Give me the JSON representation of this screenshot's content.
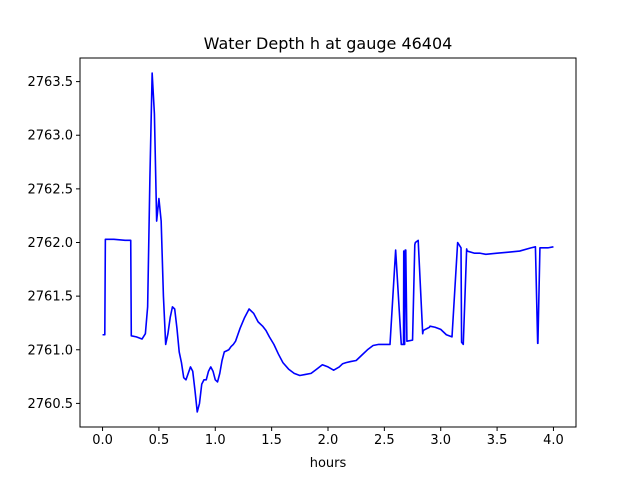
{
  "chart_data": {
    "type": "line",
    "title": "Water Depth h at gauge 46404",
    "xlabel": "hours",
    "ylabel": "",
    "xlim": [
      -0.2,
      4.2
    ],
    "ylim": [
      2760.28,
      2763.72
    ],
    "xticks": [
      0.0,
      0.5,
      1.0,
      1.5,
      2.0,
      2.5,
      3.0,
      3.5,
      4.0
    ],
    "xtick_labels": [
      "0.0",
      "0.5",
      "1.0",
      "1.5",
      "2.0",
      "2.5",
      "3.0",
      "3.5",
      "4.0"
    ],
    "yticks": [
      2760.5,
      2761.0,
      2761.5,
      2762.0,
      2762.5,
      2763.0,
      2763.5
    ],
    "ytick_labels": [
      "2760.5",
      "2761.0",
      "2761.5",
      "2762.0",
      "2762.5",
      "2763.0",
      "2763.5"
    ],
    "grid": false,
    "series": [
      {
        "color": "#0000ff",
        "x": [
          0.0,
          0.02,
          0.025,
          0.1,
          0.2,
          0.25,
          0.255,
          0.3,
          0.35,
          0.38,
          0.4,
          0.42,
          0.44,
          0.46,
          0.48,
          0.5,
          0.52,
          0.54,
          0.56,
          0.58,
          0.6,
          0.62,
          0.64,
          0.66,
          0.68,
          0.7,
          0.72,
          0.74,
          0.76,
          0.78,
          0.8,
          0.82,
          0.84,
          0.86,
          0.88,
          0.9,
          0.92,
          0.94,
          0.96,
          0.98,
          1.0,
          1.02,
          1.04,
          1.06,
          1.08,
          1.1,
          1.12,
          1.14,
          1.16,
          1.18,
          1.2,
          1.22,
          1.26,
          1.3,
          1.34,
          1.38,
          1.42,
          1.45,
          1.48,
          1.52,
          1.56,
          1.6,
          1.65,
          1.7,
          1.75,
          1.8,
          1.85,
          1.9,
          1.95,
          2.0,
          2.05,
          2.1,
          2.13,
          2.16,
          2.2,
          2.25,
          2.3,
          2.35,
          2.4,
          2.45,
          2.5,
          2.55,
          2.6,
          2.65,
          2.67,
          2.672,
          2.675,
          2.68,
          2.685,
          2.69,
          2.7,
          2.75,
          2.77,
          2.775,
          2.8,
          2.84,
          2.845,
          2.9,
          2.905,
          2.95,
          3.0,
          3.05,
          3.1,
          3.15,
          3.18,
          3.185,
          3.2,
          3.23,
          3.235,
          3.3,
          3.35,
          3.4,
          3.5,
          3.6,
          3.7,
          3.8,
          3.84,
          3.86,
          3.862,
          3.88,
          3.885,
          3.95,
          4.0
        ],
        "y": [
          2761.14,
          2761.14,
          2762.03,
          2762.03,
          2762.02,
          2762.02,
          2761.13,
          2761.12,
          2761.1,
          2761.15,
          2761.4,
          2762.6,
          2763.58,
          2763.2,
          2762.2,
          2762.41,
          2762.2,
          2761.5,
          2761.05,
          2761.15,
          2761.3,
          2761.4,
          2761.38,
          2761.2,
          2760.98,
          2760.88,
          2760.74,
          2760.72,
          2760.78,
          2760.84,
          2760.8,
          2760.62,
          2760.42,
          2760.5,
          2760.68,
          2760.72,
          2760.72,
          2760.8,
          2760.84,
          2760.8,
          2760.72,
          2760.7,
          2760.78,
          2760.9,
          2760.98,
          2760.99,
          2761.0,
          2761.03,
          2761.05,
          2761.08,
          2761.14,
          2761.2,
          2761.3,
          2761.38,
          2761.34,
          2761.26,
          2761.22,
          2761.18,
          2761.12,
          2761.05,
          2760.96,
          2760.88,
          2760.82,
          2760.78,
          2760.76,
          2760.77,
          2760.78,
          2760.82,
          2760.86,
          2760.84,
          2760.81,
          2760.84,
          2760.87,
          2760.88,
          2760.89,
          2760.9,
          2760.95,
          2761.0,
          2761.04,
          2761.05,
          2761.05,
          2761.05,
          2761.93,
          2761.05,
          2761.05,
          2761.92,
          2761.05,
          2761.05,
          2761.93,
          2761.93,
          2761.08,
          2761.09,
          2761.98,
          2762.0,
          2762.02,
          2761.15,
          2761.18,
          2761.21,
          2761.22,
          2761.21,
          2761.19,
          2761.14,
          2761.12,
          2762.0,
          2761.95,
          2761.07,
          2761.05,
          2761.94,
          2761.92,
          2761.9,
          2761.9,
          2761.89,
          2761.9,
          2761.91,
          2761.92,
          2761.95,
          2761.96,
          2761.06,
          2761.06,
          2761.95,
          2761.95,
          2761.95,
          2761.96
        ]
      }
    ]
  }
}
